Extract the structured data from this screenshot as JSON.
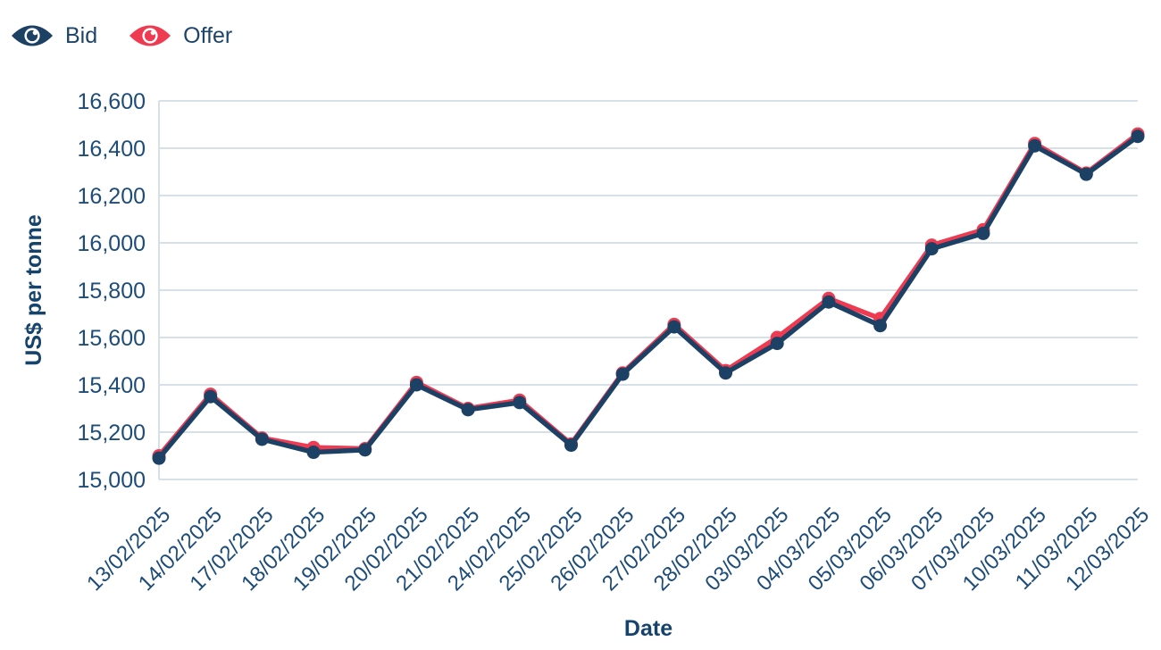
{
  "legend": {
    "items": [
      {
        "id": "bid",
        "label": "Bid"
      },
      {
        "id": "offer",
        "label": "Offer"
      }
    ]
  },
  "colors": {
    "bid": "#1d4164",
    "offer": "#ee3b51",
    "grid": "#d7dfe7",
    "tick_label": "#1d4c78",
    "axis_title": "#16436b",
    "background": "#ffffff"
  },
  "chart_data": {
    "type": "line",
    "title": "",
    "xlabel": "Date",
    "ylabel": "US$ per tonne",
    "ylim": [
      15000,
      16600
    ],
    "ytick_step": 200,
    "grid": "horizontal",
    "legend_position": "top-left",
    "categories": [
      "13/02/2025",
      "14/02/2025",
      "17/02/2025",
      "18/02/2025",
      "19/02/2025",
      "20/02/2025",
      "21/02/2025",
      "24/02/2025",
      "25/02/2025",
      "26/02/2025",
      "27/02/2025",
      "28/02/2025",
      "03/03/2025",
      "04/03/2025",
      "05/03/2025",
      "06/03/2025",
      "07/03/2025",
      "10/03/2025",
      "11/03/2025",
      "12/03/2025"
    ],
    "series": [
      {
        "name": "Bid",
        "color_key": "bid",
        "values": [
          15090,
          15350,
          15170,
          15115,
          15125,
          15400,
          15295,
          15325,
          15145,
          15445,
          15645,
          15450,
          15575,
          15750,
          15650,
          15975,
          16040,
          16410,
          16290,
          16450
        ]
      },
      {
        "name": "Offer",
        "color_key": "offer",
        "values": [
          15100,
          15360,
          15175,
          15135,
          15130,
          15410,
          15300,
          15335,
          15150,
          15450,
          15655,
          15460,
          15600,
          15765,
          15680,
          15990,
          16055,
          16420,
          16295,
          16460
        ]
      }
    ]
  }
}
